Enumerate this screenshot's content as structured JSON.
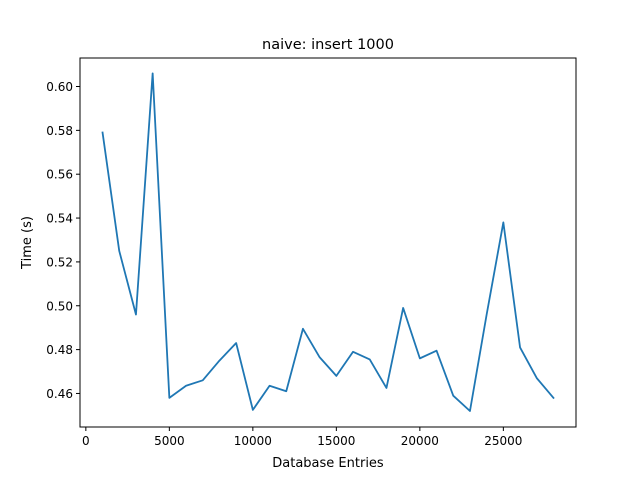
{
  "chart_data": {
    "type": "line",
    "title": "naive: insert 1000",
    "xlabel": "Database Entries",
    "ylabel": "Time (s)",
    "xlim": [
      -350,
      29350
    ],
    "ylim": [
      0.4447,
      0.613
    ],
    "xticks": [
      0,
      5000,
      10000,
      15000,
      20000,
      25000
    ],
    "xtick_labels": [
      "0",
      "5000",
      "10000",
      "15000",
      "20000",
      "25000"
    ],
    "yticks": [
      0.46,
      0.48,
      0.5,
      0.52,
      0.54,
      0.56,
      0.58,
      0.6
    ],
    "ytick_labels": [
      "0.46",
      "0.48",
      "0.50",
      "0.52",
      "0.54",
      "0.56",
      "0.58",
      "0.60"
    ],
    "grid": false,
    "series": [
      {
        "color": "#1f77b4",
        "x": [
          1000,
          2000,
          3000,
          4000,
          5000,
          6000,
          7000,
          8000,
          9000,
          10000,
          11000,
          12000,
          13000,
          14000,
          15000,
          16000,
          17000,
          18000,
          19000,
          20000,
          21000,
          22000,
          23000,
          24000,
          25000,
          26000,
          27000,
          28000
        ],
        "y": [
          0.579,
          0.525,
          0.496,
          0.606,
          0.458,
          0.4635,
          0.466,
          0.475,
          0.483,
          0.4525,
          0.4635,
          0.461,
          0.4895,
          0.4765,
          0.468,
          0.479,
          0.4755,
          0.4625,
          0.499,
          0.476,
          0.4795,
          0.459,
          0.452,
          0.496,
          0.538,
          0.481,
          0.467,
          0.458
        ]
      }
    ]
  }
}
